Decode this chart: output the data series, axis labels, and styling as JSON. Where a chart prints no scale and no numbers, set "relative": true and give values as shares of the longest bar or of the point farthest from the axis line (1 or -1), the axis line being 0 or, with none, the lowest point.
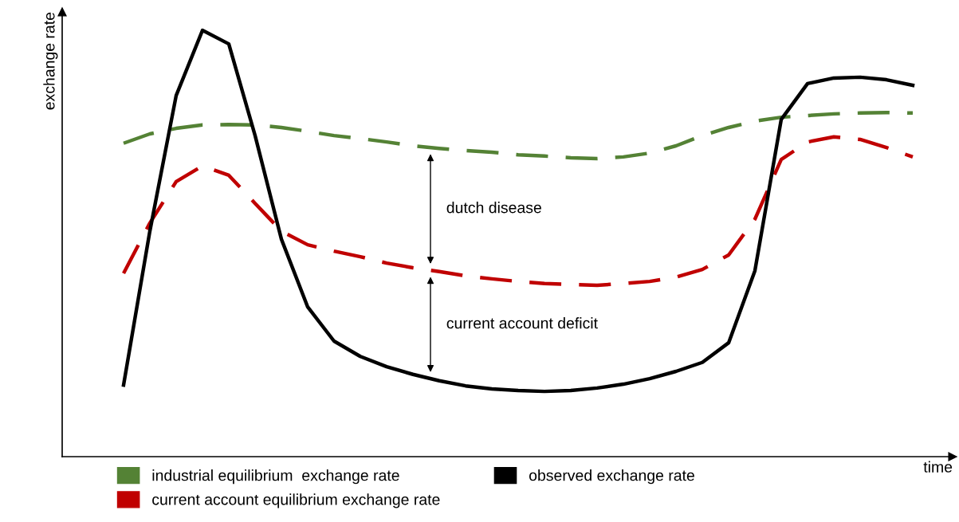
{
  "chart_data": {
    "type": "line",
    "relative": true,
    "xlabel": "time",
    "ylabel": "exchange rate",
    "categories": [
      null,
      null,
      null,
      null,
      null,
      null,
      null,
      null,
      null,
      null,
      null,
      null,
      null,
      null,
      null,
      null,
      null,
      null,
      null,
      null,
      null,
      null,
      null,
      null,
      null,
      null,
      null,
      null,
      null,
      null,
      null
    ],
    "series": [
      {
        "name": "industrial equilibrium  exchange rate",
        "color": "#548235",
        "line_style": "dashed",
        "values": [
          0.735,
          0.757,
          0.77,
          0.778,
          0.779,
          0.778,
          0.772,
          0.763,
          0.753,
          0.746,
          0.738,
          0.729,
          0.723,
          0.718,
          0.714,
          0.708,
          0.705,
          0.701,
          0.699,
          0.703,
          0.712,
          0.729,
          0.753,
          0.772,
          0.787,
          0.796,
          0.8,
          0.804,
          0.806,
          0.807,
          0.806
        ]
      },
      {
        "name": "current account equilibrium exchange rate",
        "color": "#c00000",
        "line_style": "dashed",
        "values": [
          0.43,
          0.548,
          0.645,
          0.682,
          0.66,
          0.594,
          0.529,
          0.497,
          0.482,
          0.469,
          0.454,
          0.443,
          0.434,
          0.424,
          0.417,
          0.411,
          0.406,
          0.404,
          0.402,
          0.406,
          0.411,
          0.421,
          0.439,
          0.473,
          0.557,
          0.697,
          0.738,
          0.75,
          0.744,
          0.725,
          0.703
        ]
      },
      {
        "name": "observed exchange rate",
        "color": "#000000",
        "line_style": "solid",
        "values": [
          0.168,
          0.529,
          0.847,
          1.0,
          0.968,
          0.753,
          0.51,
          0.351,
          0.271,
          0.235,
          0.211,
          0.193,
          0.178,
          0.166,
          0.159,
          0.155,
          0.153,
          0.155,
          0.161,
          0.17,
          0.183,
          0.2,
          0.221,
          0.267,
          0.436,
          0.791,
          0.875,
          0.888,
          0.89,
          0.884,
          0.871
        ]
      }
    ],
    "annotations": [
      "dutch disease",
      "current account deficit"
    ],
    "legend": "bottom",
    "marker": "none"
  }
}
